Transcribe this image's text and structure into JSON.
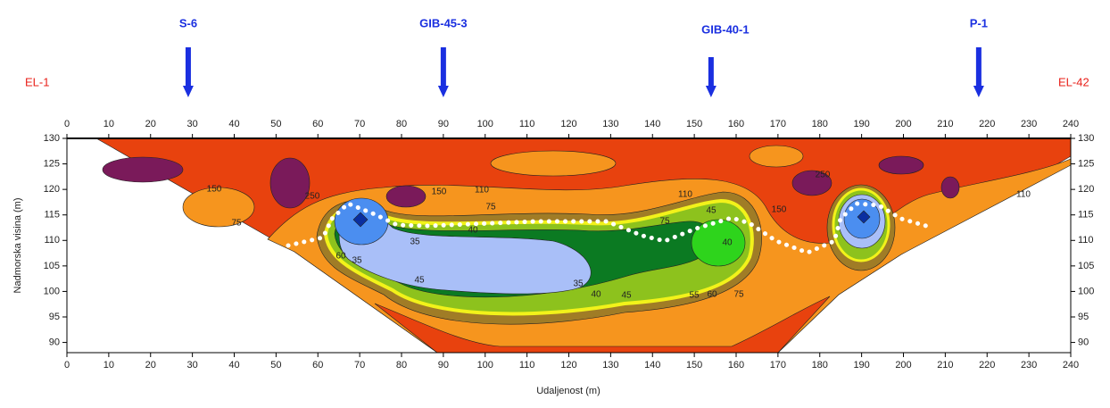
{
  "chart_data": {
    "type": "contour",
    "xlabel": "Udaljenost (m)",
    "ylabel": "Nadmorska visina (m)",
    "xlim": [
      0,
      240
    ],
    "xticks": [
      0,
      10,
      20,
      30,
      40,
      50,
      60,
      70,
      80,
      90,
      100,
      110,
      120,
      130,
      140,
      150,
      160,
      170,
      180,
      190,
      200,
      210,
      220,
      230,
      240
    ],
    "ylim": [
      88,
      130
    ],
    "yticks": [
      90,
      95,
      100,
      105,
      110,
      115,
      120,
      125,
      130
    ],
    "electrodes": [
      "EL-1",
      "EL-42"
    ],
    "boreholes": [
      {
        "name": "S-6",
        "x": 29
      },
      {
        "name": "GIB-45-3",
        "x": 90
      },
      {
        "name": "GIB-40-1",
        "x": 154
      },
      {
        "name": "P-1",
        "x": 218
      }
    ],
    "levels": [
      {
        "value": 35,
        "color": "#a9bff8"
      },
      {
        "value": 40,
        "color": "#2ed41c"
      },
      {
        "value": 45,
        "color": "#0b7a22"
      },
      {
        "value": 55,
        "color": "#8dc21d"
      },
      {
        "value": 60,
        "color": "#f2f21a"
      },
      {
        "value": 75,
        "color": "#a07c26"
      },
      {
        "value": 110,
        "color": "#f6951e"
      },
      {
        "value": 150,
        "color": "#e8420e"
      },
      {
        "value": 250,
        "color": "#7a1a5a"
      }
    ],
    "deep_colors": [
      "#4b8ef0",
      "#0a2fa0"
    ],
    "contour_labels": [
      150,
      110,
      150,
      75,
      110,
      75,
      45,
      75,
      35,
      40,
      60,
      35,
      45,
      35,
      40,
      45,
      55,
      60,
      75,
      40,
      250,
      250,
      150,
      110
    ]
  }
}
